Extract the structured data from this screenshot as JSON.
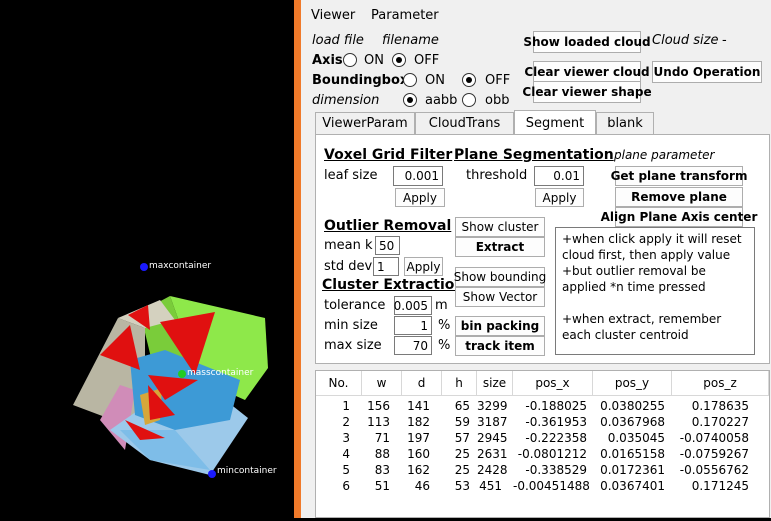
{
  "viewer": {
    "labels": {
      "max": "maxcontainer",
      "mass": "masscontainer",
      "min": "mincontainer"
    }
  },
  "menu": {
    "viewer": "Viewer",
    "parameter": "Parameter"
  },
  "top": {
    "load_file": "load file",
    "filename": "filename",
    "axis": "Axis",
    "on": "ON",
    "off": "OFF",
    "boundingbox": "Boundingbox",
    "dimension": "dimension",
    "aabb": "aabb",
    "obb": "obb",
    "show_loaded": "Show loaded cloud",
    "cloud_size_label": "Cloud size",
    "cloud_size_value": "-",
    "clear_cloud": "Clear viewer cloud",
    "undo": "Undo Operation",
    "clear_shape": "Clear viewer shape"
  },
  "tabs": [
    "ViewerParam",
    "CloudTrans",
    "Segment",
    "blank"
  ],
  "segment": {
    "voxel_title": "Voxel Grid Filter",
    "leaf_label": "leaf size",
    "leaf_value": "0.001",
    "apply": "Apply",
    "plane_title": "Plane Segmentation",
    "threshold_label": "threshold",
    "threshold_value": "0.01",
    "plane_param": "plane parameter",
    "get_plane": "Get plane transform",
    "remove_plane": "Remove plane",
    "align_plane": "Align Plane Axis center",
    "outlier_title": "Outlier Removal",
    "mean_label": "mean k",
    "mean_value": "50",
    "std_label": "std dev",
    "std_value": "1",
    "show_cluster": "Show cluster",
    "extract": "Extract",
    "cluster_title": "Cluster Extraction",
    "tol_label": "tolerance",
    "tol_value": "0.005",
    "tol_unit": "m",
    "min_label": "min size",
    "min_value": "1",
    "max_label": "max size",
    "max_value": "70",
    "pct": "%",
    "show_bounding": "Show bounding",
    "show_vector": "Show Vector",
    "bin_packing": "bin packing",
    "track_item": "track item",
    "note": "+when click apply it will reset cloud first, then apply value\n+but outlier removal be applied *n time pressed\n\n+when extract, remember each cluster centroid"
  },
  "table": {
    "headers": [
      "No.",
      "w",
      "d",
      "h",
      "size",
      "pos_x",
      "pos_y",
      "pos_z"
    ],
    "rows": [
      [
        "1",
        "156",
        "141",
        "65",
        "3299",
        "-0.188025",
        "0.0380255",
        "0.178635"
      ],
      [
        "2",
        "113",
        "182",
        "59",
        "3187",
        "-0.361953",
        "0.0367968",
        "0.170227"
      ],
      [
        "3",
        "71",
        "197",
        "57",
        "2945",
        "-0.222358",
        "0.035045",
        "-0.0740058"
      ],
      [
        "4",
        "88",
        "160",
        "25",
        "2631",
        "-0.0801212",
        "0.0165158",
        "-0.0759267"
      ],
      [
        "5",
        "83",
        "162",
        "25",
        "2428",
        "-0.338529",
        "0.0172361",
        "-0.0556762"
      ],
      [
        "6",
        "51",
        "46",
        "53",
        "451",
        "-0.00451488",
        "0.0367401",
        "0.171245"
      ]
    ]
  }
}
